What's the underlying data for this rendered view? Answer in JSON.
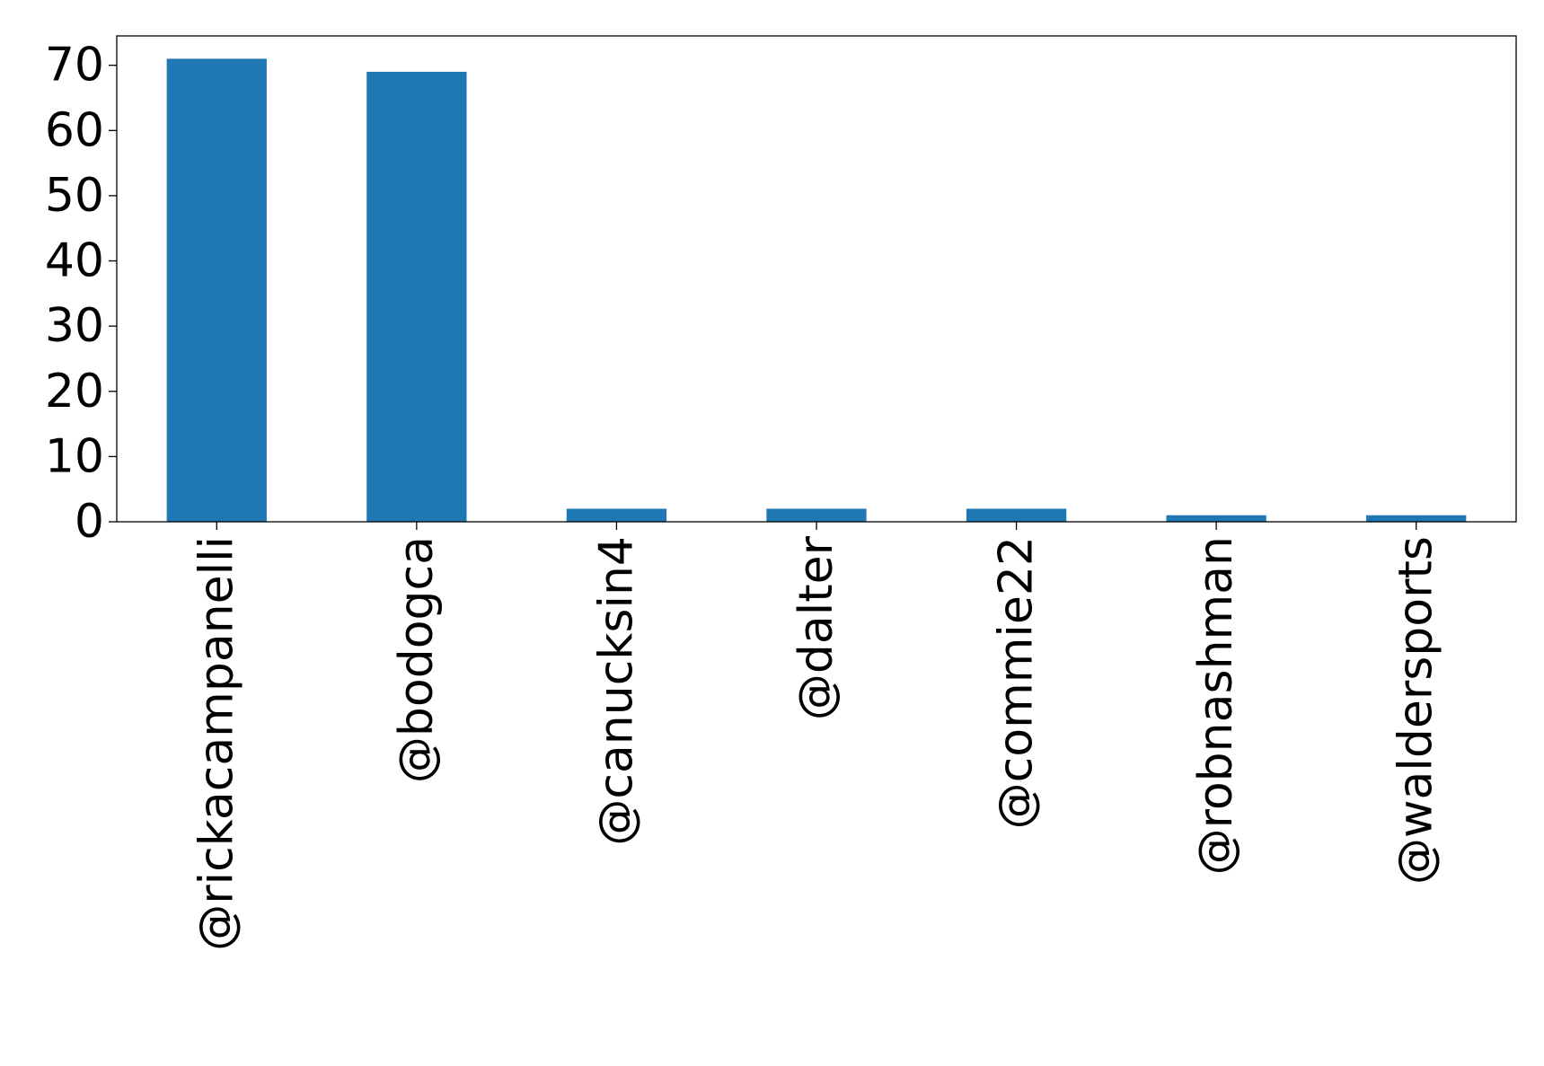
{
  "chart_data": {
    "type": "bar",
    "title": "",
    "xlabel": "",
    "ylabel": "",
    "categories": [
      "@rickacampanelli",
      "@bodogca",
      "@canucksin4",
      "@dalter",
      "@commie22",
      "@robnashman",
      "@waldersports"
    ],
    "values": [
      71,
      69,
      2,
      2,
      2,
      1,
      1
    ],
    "ylim": [
      0,
      74.5
    ],
    "yticks": [
      0,
      10,
      20,
      30,
      40,
      50,
      60,
      70
    ],
    "bar_color": "#1f77b4",
    "grid": false,
    "legend": "none"
  }
}
